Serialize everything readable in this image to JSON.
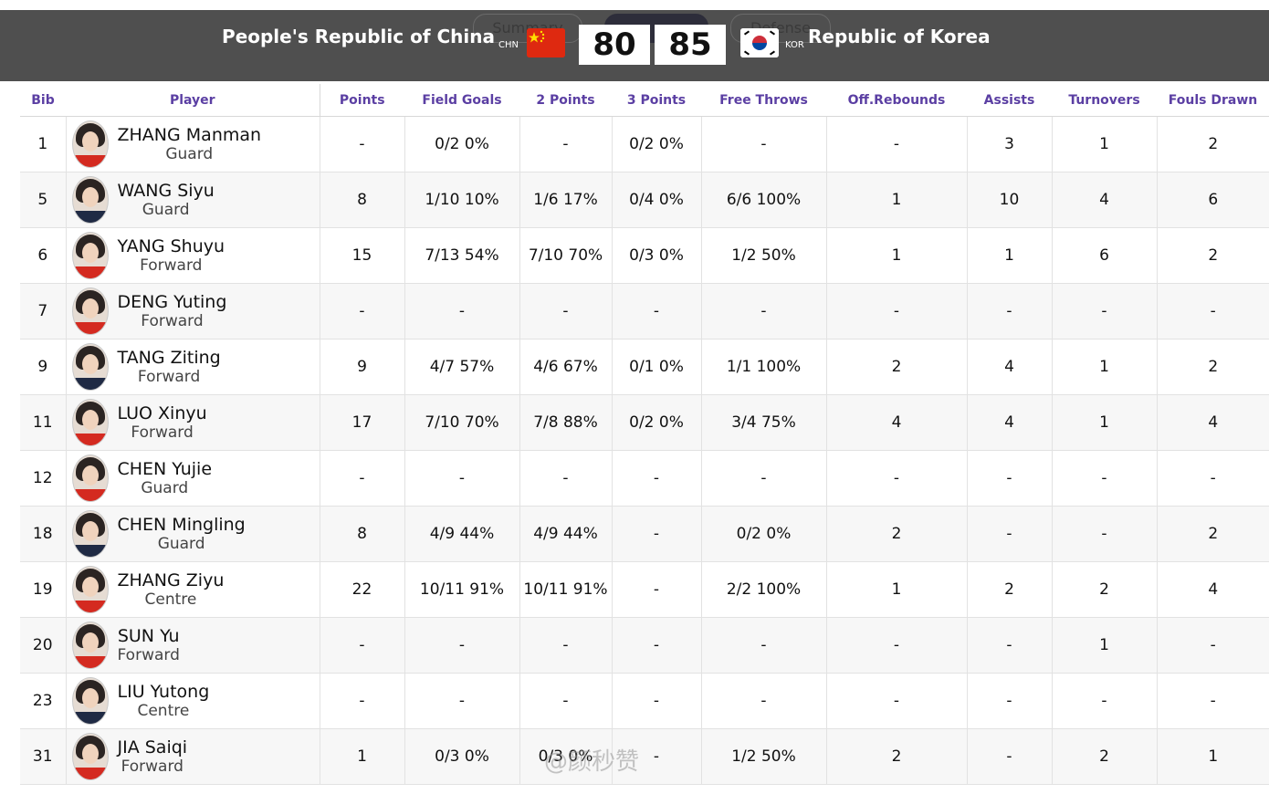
{
  "header": {
    "tabs": [
      "Summary",
      "",
      "Defense"
    ],
    "home": {
      "name": "People's Republic of China",
      "code": "CHN",
      "score": "80"
    },
    "away": {
      "name": "Republic of Korea",
      "code": "KOR",
      "score": "85"
    }
  },
  "columns": [
    "Bib",
    "Player",
    "Points",
    "Field Goals",
    "2 Points",
    "3 Points",
    "Free Throws",
    "Off.Rebounds",
    "Assists",
    "Turnovers",
    "Fouls Drawn"
  ],
  "players": [
    {
      "bib": "1",
      "name": "ZHANG Manman",
      "pos": "Guard",
      "pts": "-",
      "fg": "0/2 0%",
      "p2": "-",
      "p3": "0/2 0%",
      "ft": "-",
      "oreb": "-",
      "ast": "3",
      "tov": "1",
      "fd": "2"
    },
    {
      "bib": "5",
      "name": "WANG Siyu",
      "pos": "Guard",
      "pts": "8",
      "fg": "1/10 10%",
      "p2": "1/6 17%",
      "p3": "0/4 0%",
      "ft": "6/6 100%",
      "oreb": "1",
      "ast": "10",
      "tov": "4",
      "fd": "6"
    },
    {
      "bib": "6",
      "name": "YANG Shuyu",
      "pos": "Forward",
      "pts": "15",
      "fg": "7/13 54%",
      "p2": "7/10 70%",
      "p3": "0/3 0%",
      "ft": "1/2 50%",
      "oreb": "1",
      "ast": "1",
      "tov": "6",
      "fd": "2"
    },
    {
      "bib": "7",
      "name": "DENG Yuting",
      "pos": "Forward",
      "pts": "-",
      "fg": "-",
      "p2": "-",
      "p3": "-",
      "ft": "-",
      "oreb": "-",
      "ast": "-",
      "tov": "-",
      "fd": "-"
    },
    {
      "bib": "9",
      "name": "TANG Ziting",
      "pos": "Forward",
      "pts": "9",
      "fg": "4/7 57%",
      "p2": "4/6 67%",
      "p3": "0/1 0%",
      "ft": "1/1 100%",
      "oreb": "2",
      "ast": "4",
      "tov": "1",
      "fd": "2"
    },
    {
      "bib": "11",
      "name": "LUO Xinyu",
      "pos": "Forward",
      "pts": "17",
      "fg": "7/10 70%",
      "p2": "7/8 88%",
      "p3": "0/2 0%",
      "ft": "3/4 75%",
      "oreb": "4",
      "ast": "4",
      "tov": "1",
      "fd": "4"
    },
    {
      "bib": "12",
      "name": "CHEN Yujie",
      "pos": "Guard",
      "pts": "-",
      "fg": "-",
      "p2": "-",
      "p3": "-",
      "ft": "-",
      "oreb": "-",
      "ast": "-",
      "tov": "-",
      "fd": "-"
    },
    {
      "bib": "18",
      "name": "CHEN Mingling",
      "pos": "Guard",
      "pts": "8",
      "fg": "4/9 44%",
      "p2": "4/9 44%",
      "p3": "-",
      "ft": "0/2 0%",
      "oreb": "2",
      "ast": "-",
      "tov": "-",
      "fd": "2"
    },
    {
      "bib": "19",
      "name": "ZHANG Ziyu",
      "pos": "Centre",
      "pts": "22",
      "fg": "10/11 91%",
      "p2": "10/11 91%",
      "p3": "-",
      "ft": "2/2 100%",
      "oreb": "1",
      "ast": "2",
      "tov": "2",
      "fd": "4"
    },
    {
      "bib": "20",
      "name": "SUN Yu",
      "pos": "Forward",
      "pts": "-",
      "fg": "-",
      "p2": "-",
      "p3": "-",
      "ft": "-",
      "oreb": "-",
      "ast": "-",
      "tov": "1",
      "fd": "-"
    },
    {
      "bib": "23",
      "name": "LIU Yutong",
      "pos": "Centre",
      "pts": "-",
      "fg": "-",
      "p2": "-",
      "p3": "-",
      "ft": "-",
      "oreb": "-",
      "ast": "-",
      "tov": "-",
      "fd": "-"
    },
    {
      "bib": "31",
      "name": "JIA Saiqi",
      "pos": "Forward",
      "pts": "1",
      "fg": "0/3 0%",
      "p2": "0/3 0%",
      "p3": "-",
      "ft": "1/2 50%",
      "oreb": "2",
      "ast": "-",
      "tov": "2",
      "fd": "1"
    }
  ],
  "watermark": "@颜秒赞"
}
